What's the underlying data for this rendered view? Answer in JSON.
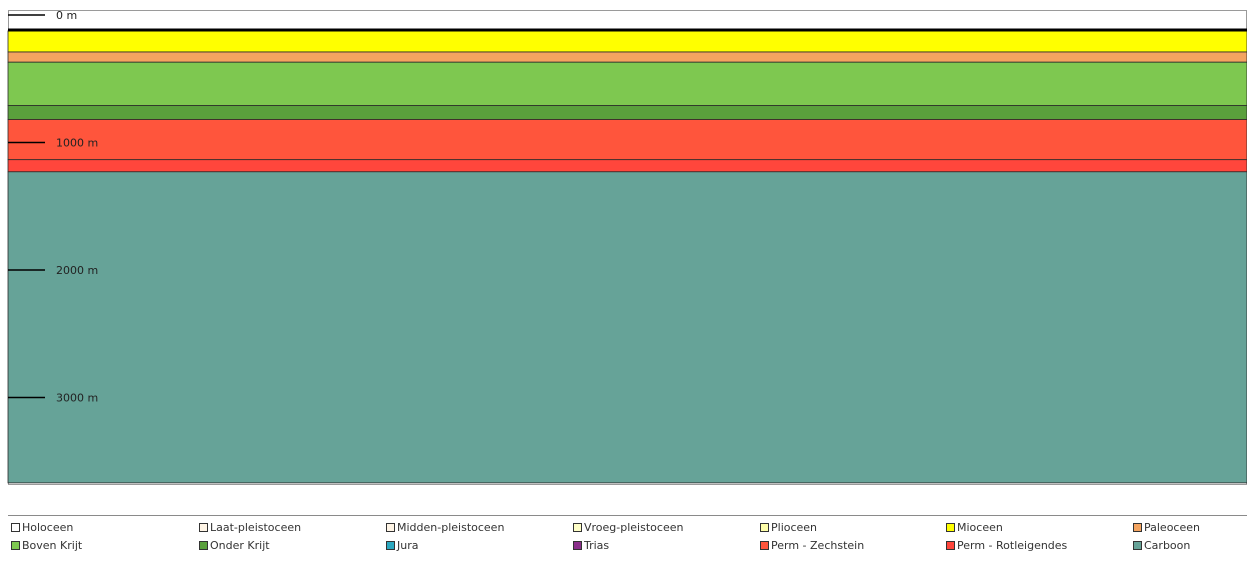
{
  "depth_scale": {
    "unit": "m",
    "ticks": [
      {
        "depth": 0,
        "label": "0 m"
      },
      {
        "depth": 1000,
        "label": "1000 m"
      },
      {
        "depth": 2000,
        "label": "2000 m"
      },
      {
        "depth": 3000,
        "label": "3000 m"
      }
    ]
  },
  "layers": [
    {
      "name": "Mioceen",
      "top": 125,
      "bottom": 290,
      "color": "#ffff00"
    },
    {
      "name": "Paleoceen",
      "top": 290,
      "bottom": 370,
      "color": "#f4a460"
    },
    {
      "name": "Boven Krijt",
      "top": 370,
      "bottom": 710,
      "color": "#7ec850"
    },
    {
      "name": "Onder Krijt",
      "top": 710,
      "bottom": 820,
      "color": "#5aa03c"
    },
    {
      "name": "Perm - Zechstein",
      "top": 820,
      "bottom": 1135,
      "color": "#ff553c"
    },
    {
      "name": "Perm - Rotleigendes",
      "top": 1135,
      "bottom": 1230,
      "color": "#ff463c"
    },
    {
      "name": "Carboon",
      "top": 1230,
      "bottom": 3670,
      "color": "#66a398"
    }
  ],
  "legend": {
    "row1": [
      {
        "label": "Holoceen",
        "color": "#ffffff"
      },
      {
        "label": "Laat-pleistoceen",
        "color": "#fff5e6"
      },
      {
        "label": "Midden-pleistoceen",
        "color": "#fff5e6"
      },
      {
        "label": "Vroeg-pleistoceen",
        "color": "#ffffc8"
      },
      {
        "label": "Plioceen",
        "color": "#ffffaa"
      },
      {
        "label": "Mioceen",
        "color": "#ffff00"
      },
      {
        "label": "Paleoceen",
        "color": "#f4a460"
      }
    ],
    "row2": [
      {
        "label": "Boven Krijt",
        "color": "#7ec850"
      },
      {
        "label": "Onder Krijt",
        "color": "#5aa03c"
      },
      {
        "label": "Jura",
        "color": "#2ba8c0"
      },
      {
        "label": "Trias",
        "color": "#8b2f8b"
      },
      {
        "label": "Perm - Zechstein",
        "color": "#ff553c"
      },
      {
        "label": "Perm - Rotleigendes",
        "color": "#ff463c"
      },
      {
        "label": "Carboon",
        "color": "#66a398"
      }
    ]
  }
}
